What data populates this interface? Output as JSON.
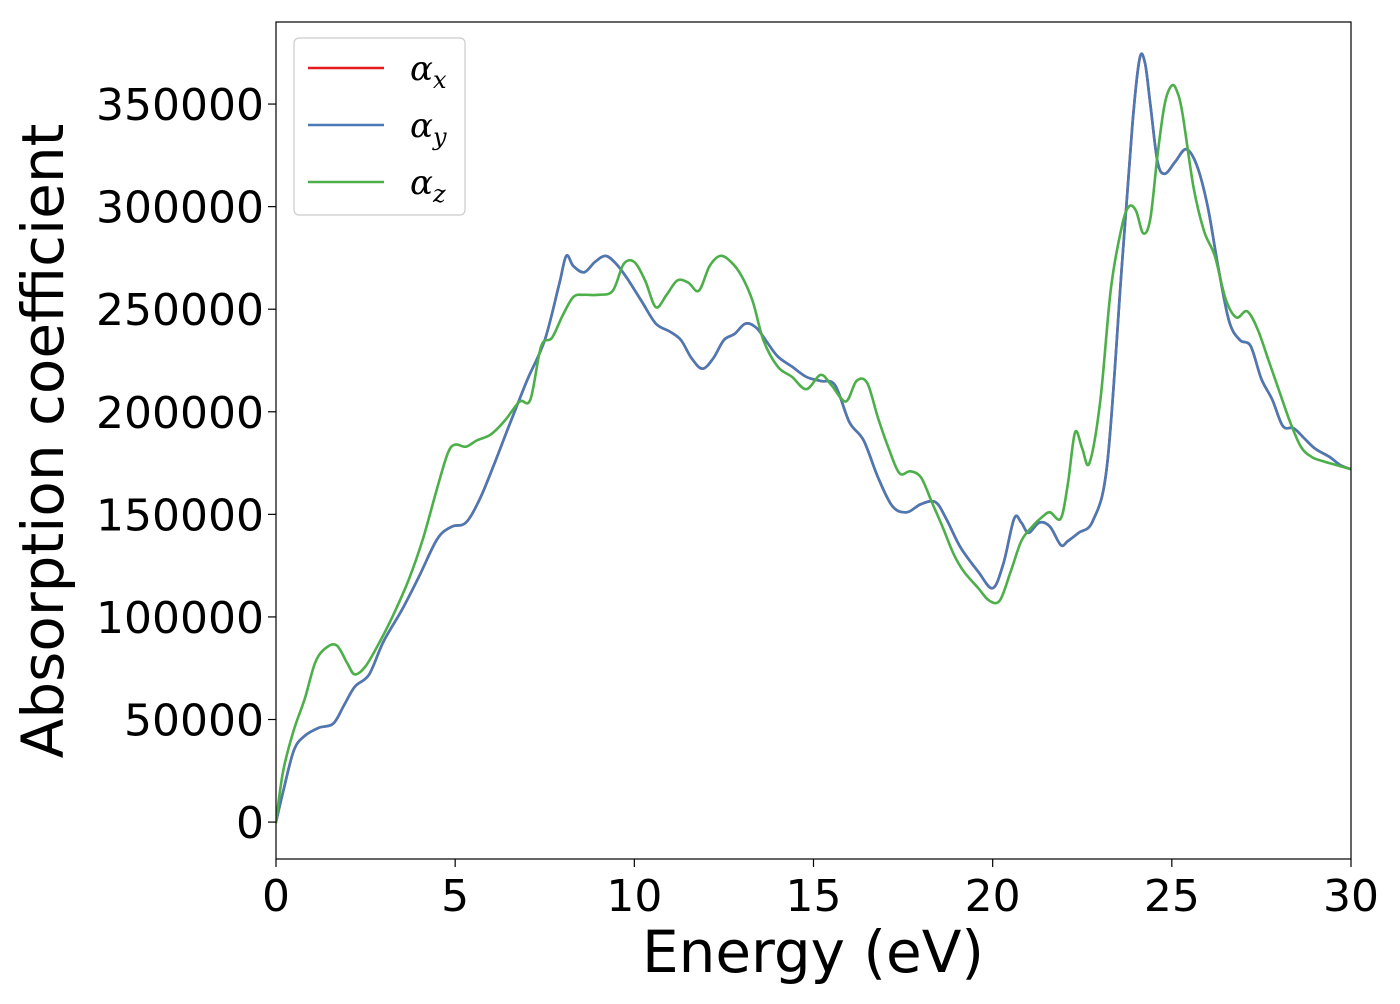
{
  "chart_data": {
    "type": "line",
    "title": "",
    "xlabel": "Energy (eV)",
    "ylabel": "Absorption coefficient",
    "xlim": [
      0,
      30
    ],
    "ylim": [
      -18000,
      390000
    ],
    "xticks": [
      0,
      5,
      10,
      15,
      20,
      25,
      30
    ],
    "xtick_labels": [
      "0",
      "5",
      "10",
      "15",
      "20",
      "25",
      "30"
    ],
    "yticks": [
      0,
      50000,
      100000,
      150000,
      200000,
      250000,
      300000,
      350000
    ],
    "ytick_labels": [
      "0",
      "50000",
      "100000",
      "150000",
      "200000",
      "250000",
      "300000",
      "350000"
    ],
    "grid": false,
    "legend_position": "top-left",
    "legend_symbol": "α",
    "series": [
      {
        "name": "αx",
        "symbol": "α",
        "subscript": "x",
        "color": "#e41a1c",
        "x": [
          0,
          0.2,
          0.5,
          0.8,
          1.2,
          1.6,
          1.9,
          2.2,
          2.6,
          3.0,
          3.5,
          4.0,
          4.5,
          4.9,
          5.3,
          5.7,
          6.1,
          6.5,
          7.0,
          7.5,
          7.9,
          8.1,
          8.3,
          8.6,
          8.9,
          9.2,
          9.5,
          9.8,
          10.2,
          10.6,
          11.0,
          11.3,
          11.6,
          11.9,
          12.2,
          12.5,
          12.8,
          13.1,
          13.4,
          13.7,
          14.0,
          14.4,
          14.8,
          15.2,
          15.6,
          16.0,
          16.4,
          16.8,
          17.2,
          17.6,
          18.0,
          18.4,
          18.7,
          19.1,
          19.6,
          20.0,
          20.3,
          20.6,
          20.8,
          21.0,
          21.3,
          21.6,
          21.9,
          22.1,
          22.4,
          22.8,
          23.2,
          23.6,
          23.9,
          24.1,
          24.25,
          24.4,
          24.6,
          24.8,
          25.1,
          25.4,
          25.7,
          26.0,
          26.3,
          26.6,
          26.9,
          27.2,
          27.5,
          27.8,
          28.1,
          28.4,
          28.7,
          29.0,
          29.4,
          29.7,
          30.0
        ],
        "values": [
          0,
          15000,
          35000,
          42000,
          46000,
          48000,
          57000,
          66000,
          72000,
          88000,
          103000,
          120000,
          138000,
          144000,
          146000,
          158000,
          175000,
          193000,
          215000,
          235000,
          262000,
          276000,
          271000,
          268000,
          273000,
          276000,
          272000,
          265000,
          254000,
          243000,
          239000,
          235000,
          226000,
          221000,
          226000,
          235000,
          238000,
          243000,
          241000,
          234000,
          227000,
          222000,
          217000,
          215000,
          213000,
          195000,
          186000,
          168000,
          154000,
          151000,
          155000,
          156000,
          148000,
          134000,
          122000,
          114000,
          126000,
          148000,
          146000,
          141000,
          146000,
          144000,
          135000,
          137000,
          141000,
          147000,
          175000,
          270000,
          340000,
          372000,
          370000,
          350000,
          322000,
          316000,
          322000,
          328000,
          320000,
          300000,
          270000,
          244000,
          235000,
          232000,
          216000,
          206000,
          193000,
          192000,
          187000,
          182000,
          178000,
          174000,
          172000
        ]
      },
      {
        "name": "αy",
        "symbol": "α",
        "subscript": "y",
        "color": "#4a7ab5",
        "x": [
          0,
          0.2,
          0.5,
          0.8,
          1.2,
          1.6,
          1.9,
          2.2,
          2.6,
          3.0,
          3.5,
          4.0,
          4.5,
          4.9,
          5.3,
          5.7,
          6.1,
          6.5,
          7.0,
          7.5,
          7.9,
          8.1,
          8.3,
          8.6,
          8.9,
          9.2,
          9.5,
          9.8,
          10.2,
          10.6,
          11.0,
          11.3,
          11.6,
          11.9,
          12.2,
          12.5,
          12.8,
          13.1,
          13.4,
          13.7,
          14.0,
          14.4,
          14.8,
          15.2,
          15.6,
          16.0,
          16.4,
          16.8,
          17.2,
          17.6,
          18.0,
          18.4,
          18.7,
          19.1,
          19.6,
          20.0,
          20.3,
          20.6,
          20.8,
          21.0,
          21.3,
          21.6,
          21.9,
          22.1,
          22.4,
          22.8,
          23.2,
          23.6,
          23.9,
          24.1,
          24.25,
          24.4,
          24.6,
          24.8,
          25.1,
          25.4,
          25.7,
          26.0,
          26.3,
          26.6,
          26.9,
          27.2,
          27.5,
          27.8,
          28.1,
          28.4,
          28.7,
          29.0,
          29.4,
          29.7,
          30.0
        ],
        "values": [
          0,
          15000,
          35000,
          42000,
          46000,
          48000,
          57000,
          66000,
          72000,
          88000,
          103000,
          120000,
          138000,
          144000,
          146000,
          158000,
          175000,
          193000,
          215000,
          235000,
          262000,
          276000,
          271000,
          268000,
          273000,
          276000,
          272000,
          265000,
          254000,
          243000,
          239000,
          235000,
          226000,
          221000,
          226000,
          235000,
          238000,
          243000,
          241000,
          234000,
          227000,
          222000,
          217000,
          215000,
          213000,
          195000,
          186000,
          168000,
          154000,
          151000,
          155000,
          156000,
          148000,
          134000,
          122000,
          114000,
          126000,
          148000,
          146000,
          141000,
          146000,
          144000,
          135000,
          137000,
          141000,
          147000,
          175000,
          270000,
          340000,
          372000,
          370000,
          350000,
          322000,
          316000,
          322000,
          328000,
          320000,
          300000,
          270000,
          244000,
          235000,
          232000,
          216000,
          206000,
          193000,
          192000,
          187000,
          182000,
          178000,
          174000,
          172000
        ]
      },
      {
        "name": "αz",
        "symbol": "α",
        "subscript": "z",
        "color": "#4daf4a",
        "x": [
          0,
          0.2,
          0.5,
          0.8,
          1.1,
          1.4,
          1.7,
          2.0,
          2.2,
          2.5,
          2.9,
          3.3,
          3.7,
          4.1,
          4.5,
          4.8,
          5.0,
          5.3,
          5.6,
          6.0,
          6.4,
          6.8,
          7.1,
          7.4,
          7.7,
          8.0,
          8.3,
          8.6,
          9.0,
          9.4,
          9.7,
          10.0,
          10.3,
          10.6,
          10.9,
          11.2,
          11.5,
          11.8,
          12.1,
          12.4,
          12.7,
          13.0,
          13.3,
          13.6,
          14.0,
          14.4,
          14.8,
          15.2,
          15.5,
          15.9,
          16.2,
          16.5,
          16.8,
          17.1,
          17.4,
          17.7,
          18.0,
          18.3,
          18.6,
          18.9,
          19.2,
          19.6,
          19.9,
          20.2,
          20.5,
          20.8,
          21.1,
          21.4,
          21.6,
          21.9,
          22.1,
          22.3,
          22.5,
          22.7,
          23.0,
          23.3,
          23.6,
          23.8,
          24.0,
          24.2,
          24.4,
          24.6,
          24.8,
          25.0,
          25.15,
          25.3,
          25.6,
          25.9,
          26.2,
          26.5,
          26.8,
          27.1,
          27.4,
          27.7,
          28.0,
          28.3,
          28.6,
          28.9,
          29.2,
          29.6,
          30.0
        ],
        "values": [
          0,
          25000,
          45000,
          60000,
          78000,
          85000,
          86000,
          77000,
          72000,
          76000,
          88000,
          102000,
          118000,
          138000,
          163000,
          180000,
          184000,
          183000,
          186000,
          189000,
          196000,
          205000,
          206000,
          232000,
          236000,
          247000,
          256000,
          257000,
          257000,
          259000,
          272000,
          273000,
          264000,
          251000,
          257000,
          264000,
          263000,
          259000,
          271000,
          276000,
          273000,
          266000,
          254000,
          235000,
          222000,
          217000,
          211000,
          218000,
          213000,
          205000,
          215000,
          214000,
          197000,
          182000,
          170000,
          171000,
          168000,
          156000,
          144000,
          131000,
          122000,
          114000,
          108000,
          108000,
          122000,
          137000,
          144000,
          149000,
          151000,
          148000,
          165000,
          190000,
          182000,
          175000,
          205000,
          260000,
          290000,
          300000,
          298000,
          287000,
          294000,
          325000,
          350000,
          359000,
          356000,
          345000,
          310000,
          288000,
          276000,
          255000,
          246000,
          249000,
          240000,
          225000,
          210000,
          195000,
          183000,
          178000,
          176000,
          174000,
          172000
        ]
      }
    ]
  }
}
